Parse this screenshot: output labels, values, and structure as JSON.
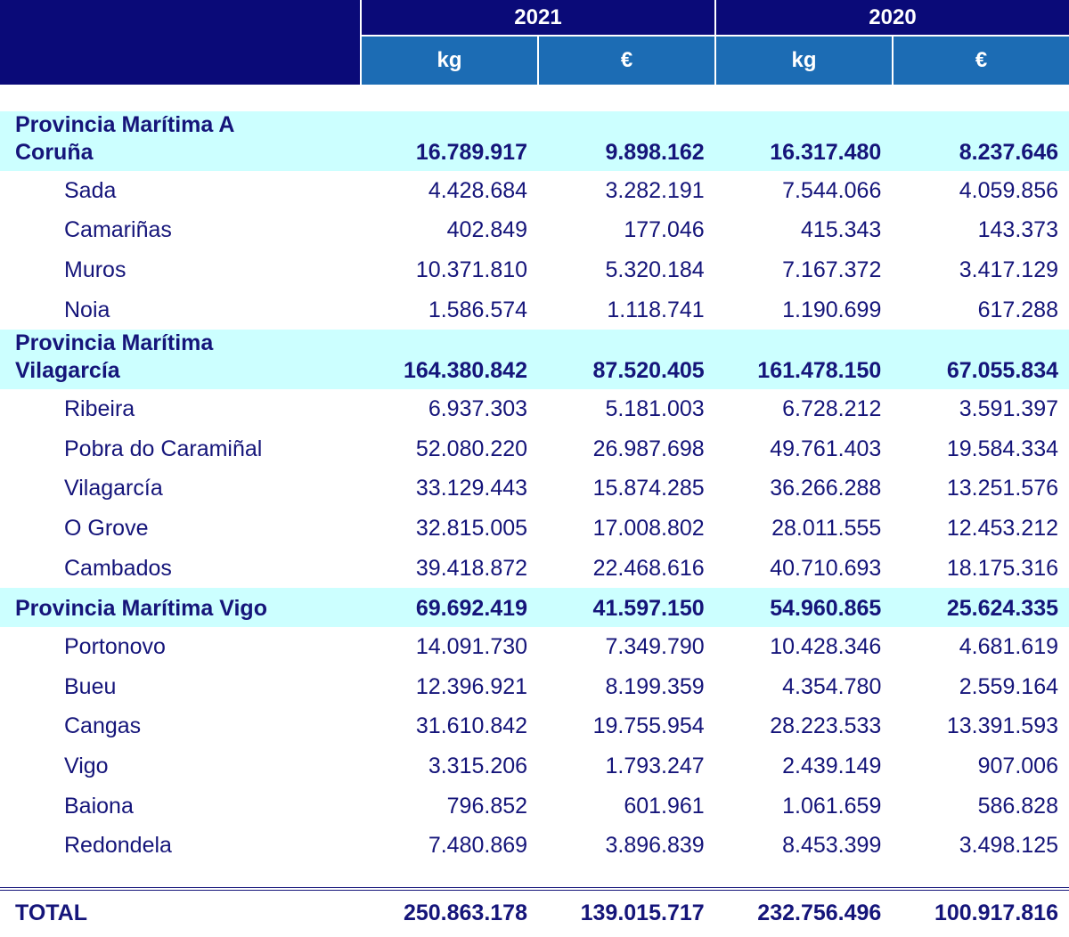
{
  "header": {
    "years": [
      "2021",
      "2020"
    ],
    "units": [
      "kg",
      "€",
      "kg",
      "€"
    ]
  },
  "groups": [
    {
      "name": "Provincia Marítima A Coruña",
      "values": [
        "16.789.917",
        "9.898.162",
        "16.317.480",
        "8.237.646"
      ],
      "rows": [
        {
          "name": "Sada",
          "values": [
            "4.428.684",
            "3.282.191",
            "7.544.066",
            "4.059.856"
          ]
        },
        {
          "name": "Camariñas",
          "values": [
            "402.849",
            "177.046",
            "415.343",
            "143.373"
          ]
        },
        {
          "name": "Muros",
          "values": [
            "10.371.810",
            "5.320.184",
            "7.167.372",
            "3.417.129"
          ]
        },
        {
          "name": "Noia",
          "values": [
            "1.586.574",
            "1.118.741",
            "1.190.699",
            "617.288"
          ]
        }
      ]
    },
    {
      "name": "Provincia Marítima Vilagarcía",
      "values": [
        "164.380.842",
        "87.520.405",
        "161.478.150",
        "67.055.834"
      ],
      "rows": [
        {
          "name": "Ribeira",
          "values": [
            "6.937.303",
            "5.181.003",
            "6.728.212",
            "3.591.397"
          ]
        },
        {
          "name": "Pobra do Caramiñal",
          "values": [
            "52.080.220",
            "26.987.698",
            "49.761.403",
            "19.584.334"
          ]
        },
        {
          "name": "Vilagarcía",
          "values": [
            "33.129.443",
            "15.874.285",
            "36.266.288",
            "13.251.576"
          ]
        },
        {
          "name": "O Grove",
          "values": [
            "32.815.005",
            "17.008.802",
            "28.011.555",
            "12.453.212"
          ]
        },
        {
          "name": "Cambados",
          "values": [
            "39.418.872",
            "22.468.616",
            "40.710.693",
            "18.175.316"
          ]
        }
      ]
    },
    {
      "name": "Provincia Marítima Vigo",
      "values": [
        "69.692.419",
        "41.597.150",
        "54.960.865",
        "25.624.335"
      ],
      "rows": [
        {
          "name": "Portonovo",
          "values": [
            "14.091.730",
            "7.349.790",
            "10.428.346",
            "4.681.619"
          ]
        },
        {
          "name": "Bueu",
          "values": [
            "12.396.921",
            "8.199.359",
            "4.354.780",
            "2.559.164"
          ]
        },
        {
          "name": "Cangas",
          "values": [
            "31.610.842",
            "19.755.954",
            "28.223.533",
            "13.391.593"
          ]
        },
        {
          "name": "Vigo",
          "values": [
            "3.315.206",
            "1.793.247",
            "2.439.149",
            "907.006"
          ]
        },
        {
          "name": "Baiona",
          "values": [
            "796.852",
            "601.961",
            "1.061.659",
            "586.828"
          ]
        },
        {
          "name": "Redondela",
          "values": [
            "7.480.869",
            "3.896.839",
            "8.453.399",
            "3.498.125"
          ]
        }
      ]
    }
  ],
  "total": {
    "label": "TOTAL",
    "values": [
      "250.863.178",
      "139.015.717",
      "232.756.496",
      "100.917.816"
    ]
  }
}
